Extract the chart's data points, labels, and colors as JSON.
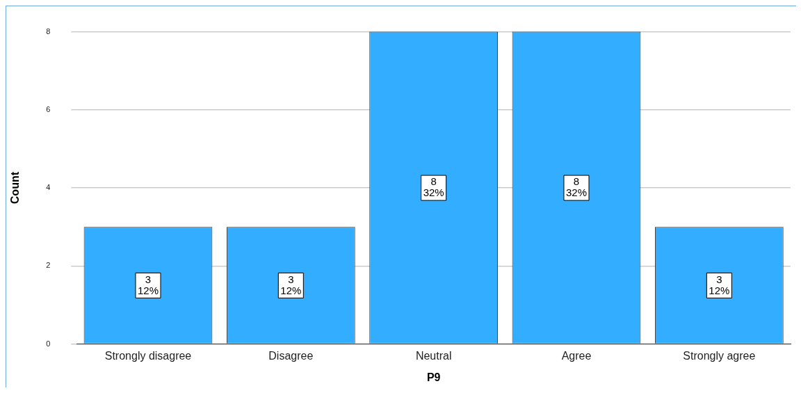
{
  "chart_data": {
    "type": "bar",
    "xlabel": "P9",
    "ylabel": "Count",
    "categories": [
      "Strongly disagree",
      "Disagree",
      "Neutral",
      "Agree",
      "Strongly agree"
    ],
    "values": [
      3,
      3,
      8,
      8,
      3
    ],
    "value_labels": [
      "3\n12%",
      "3\n12%",
      "8\n32%",
      "8\n32%",
      "3\n12%"
    ],
    "color": "#33adff",
    "ylim": [
      0,
      8
    ],
    "yticks": [
      0,
      2,
      4,
      6,
      8
    ],
    "grid": "y",
    "legend": false
  }
}
